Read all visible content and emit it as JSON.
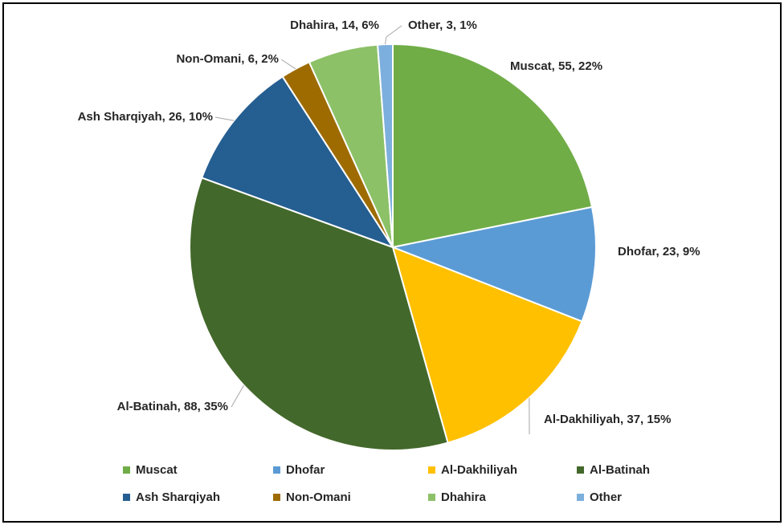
{
  "chart_data": {
    "type": "pie",
    "title": "",
    "slices": [
      {
        "name": "Muscat",
        "value": 55,
        "percent": "22%",
        "color": "#70AD47",
        "label": "Muscat, 55, 22%"
      },
      {
        "name": "Dhofar",
        "value": 23,
        "percent": "9%",
        "color": "#5B9BD5",
        "label": "Dhofar, 23, 9%"
      },
      {
        "name": "Al-Dakhiliyah",
        "value": 37,
        "percent": "15%",
        "color": "#FFC000",
        "label": "Al-Dakhiliyah, 37, 15%"
      },
      {
        "name": "Al-Batinah",
        "value": 88,
        "percent": "35%",
        "color": "#43682B",
        "label": "Al-Batinah, 88, 35%"
      },
      {
        "name": "Ash Sharqiyah",
        "value": 26,
        "percent": "10%",
        "color": "#255E91",
        "label": "Ash Sharqiyah, 26, 10%"
      },
      {
        "name": "Non-Omani",
        "value": 6,
        "percent": "2%",
        "color": "#9E6B00",
        "label": "Non-Omani, 6, 2%"
      },
      {
        "name": "Dhahira",
        "value": 14,
        "percent": "6%",
        "color": "#8CC168",
        "label": "Dhahira, 14, 6%"
      },
      {
        "name": "Other",
        "value": 3,
        "percent": "1%",
        "color": "#7CAFDD",
        "label": "Other, 3, 1%"
      }
    ],
    "legend_position": "bottom"
  }
}
